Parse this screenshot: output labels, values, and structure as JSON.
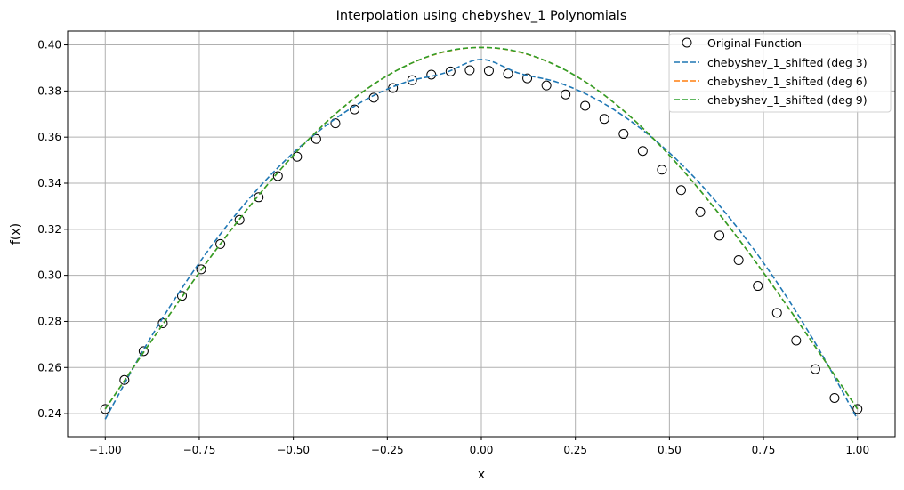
{
  "chart_data": {
    "type": "line",
    "title": "Interpolation using chebyshev_1 Polynomials",
    "xlabel": "x",
    "ylabel": "f(x)",
    "xlim": [
      -1.1,
      1.1
    ],
    "ylim": [
      0.23,
      0.406
    ],
    "xticks": [
      -1.0,
      -0.75,
      -0.5,
      -0.25,
      0.0,
      0.25,
      0.5,
      0.75,
      1.0
    ],
    "xtick_labels": [
      "−1.00",
      "−0.75",
      "−0.50",
      "−0.25",
      "0.00",
      "0.25",
      "0.50",
      "0.75",
      "1.00"
    ],
    "yticks": [
      0.24,
      0.26,
      0.28,
      0.3,
      0.32,
      0.34,
      0.36,
      0.38,
      0.4
    ],
    "ytick_labels": [
      "0.24",
      "0.26",
      "0.28",
      "0.30",
      "0.32",
      "0.34",
      "0.36",
      "0.38",
      "0.40"
    ],
    "grid": true,
    "legend_position": "top-right",
    "scatter": {
      "name": "Original Function",
      "marker": "open-circle",
      "color": "#000000",
      "x": [
        -1.0,
        -0.949,
        -0.898,
        -0.847,
        -0.796,
        -0.745,
        -0.694,
        -0.643,
        -0.592,
        -0.541,
        -0.49,
        -0.439,
        -0.388,
        -0.337,
        -0.286,
        -0.235,
        -0.184,
        -0.133,
        -0.082,
        -0.031,
        0.02,
        0.071,
        0.122,
        0.173,
        0.224,
        0.276,
        0.327,
        0.378,
        0.429,
        0.48,
        0.531,
        0.582,
        0.633,
        0.684,
        0.735,
        0.786,
        0.837,
        0.888,
        0.939,
        1.0
      ],
      "y": [
        0.242,
        0.2546,
        0.2671,
        0.2792,
        0.2911,
        0.3026,
        0.3136,
        0.3241,
        0.3339,
        0.3431,
        0.3515,
        0.3592,
        0.366,
        0.372,
        0.3771,
        0.3813,
        0.3847,
        0.3871,
        0.3885,
        0.389,
        0.3888,
        0.3875,
        0.3855,
        0.3824,
        0.3785,
        0.3736,
        0.3679,
        0.3614,
        0.354,
        0.3459,
        0.337,
        0.3275,
        0.3173,
        0.3066,
        0.2954,
        0.2837,
        0.2717,
        0.2593,
        0.2468,
        0.242
      ]
    },
    "series": [
      {
        "name": "chebyshev_1_shifted (deg 3)",
        "color": "#1f77b4",
        "dash": "dashed",
        "x": [
          -1.0,
          -0.9,
          -0.8,
          -0.7,
          -0.6,
          -0.5,
          -0.4,
          -0.3,
          -0.2,
          -0.1,
          0.0,
          0.1,
          0.2,
          0.3,
          0.4,
          0.5,
          0.6,
          0.7,
          0.8,
          0.9,
          1.0
        ],
        "y": [
          0.2376,
          0.2672,
          0.2935,
          0.3166,
          0.3365,
          0.3532,
          0.3666,
          0.3769,
          0.3839,
          0.3877,
          0.3937,
          0.3877,
          0.3839,
          0.3769,
          0.3666,
          0.3532,
          0.3365,
          0.3166,
          0.2935,
          0.2672,
          0.2376
        ]
      },
      {
        "name": "chebyshev_1_shifted (deg 6)",
        "color": "#ff7f0e",
        "dash": "dashed",
        "x": [
          -1.0,
          -0.9,
          -0.8,
          -0.7,
          -0.6,
          -0.5,
          -0.4,
          -0.3,
          -0.2,
          -0.1,
          0.0,
          0.1,
          0.2,
          0.3,
          0.4,
          0.5,
          0.6,
          0.7,
          0.8,
          0.9,
          1.0
        ],
        "y": [
          0.242,
          0.2661,
          0.2897,
          0.3123,
          0.3332,
          0.3521,
          0.3683,
          0.3814,
          0.391,
          0.3969,
          0.3989,
          0.3969,
          0.391,
          0.3814,
          0.3683,
          0.3521,
          0.3332,
          0.3123,
          0.2897,
          0.2661,
          0.242
        ]
      },
      {
        "name": "chebyshev_1_shifted (deg 9)",
        "color": "#2ca02c",
        "dash": "dashed",
        "x": [
          -1.0,
          -0.9,
          -0.8,
          -0.7,
          -0.6,
          -0.5,
          -0.4,
          -0.3,
          -0.2,
          -0.1,
          0.0,
          0.1,
          0.2,
          0.3,
          0.4,
          0.5,
          0.6,
          0.7,
          0.8,
          0.9,
          1.0
        ],
        "y": [
          0.242,
          0.2661,
          0.2897,
          0.3123,
          0.3332,
          0.3521,
          0.3683,
          0.3814,
          0.391,
          0.397,
          0.3989,
          0.397,
          0.391,
          0.3814,
          0.3683,
          0.3521,
          0.3332,
          0.3123,
          0.2897,
          0.2661,
          0.242
        ]
      }
    ]
  }
}
